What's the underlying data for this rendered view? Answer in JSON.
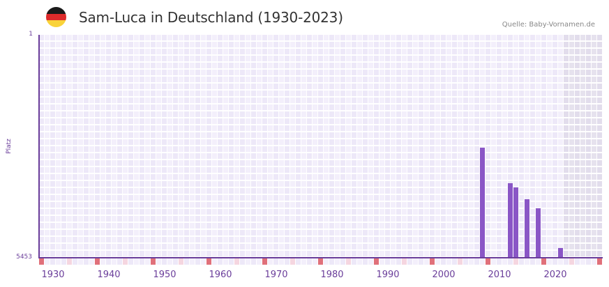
{
  "header": {
    "title": "Sam-Luca in Deutschland (1930-2023)",
    "source": "Quelle: Baby-Vornamen.de",
    "flag_icon": "germany-flag-icon",
    "flag_colors": [
      "#1a1a1a",
      "#dd2b2b",
      "#f9d33a"
    ]
  },
  "colors": {
    "bar": "#8a56c6",
    "axis": "#6a3d9a",
    "decade_marker": "#e0707a",
    "half_decade_marker": "#f5d6e0",
    "grid_even": "#ede8f8",
    "grid_odd": "#f3effb",
    "future_shade": "#e2ddec"
  },
  "chart_data": {
    "type": "bar",
    "title": "Sam-Luca in Deutschland (1930-2023)",
    "xlabel": "",
    "ylabel": "Platz",
    "y_inverted": true,
    "ylim": [
      1,
      5453
    ],
    "y_ticks": [
      "1",
      "5453"
    ],
    "x_range": [
      1928,
      2028
    ],
    "x_ticks": [
      "1930",
      "1940",
      "1950",
      "1960",
      "1970",
      "1980",
      "1990",
      "2000",
      "2010",
      "2020"
    ],
    "shaded_from_year": 2022,
    "categories": [
      "2007",
      "2012",
      "2013",
      "2015",
      "2017",
      "2021"
    ],
    "values": [
      2761,
      3630,
      3732,
      4022,
      4243,
      5215
    ],
    "grid": true,
    "legend": null
  },
  "axis": {
    "y_top_label": "1",
    "y_bottom_label": "5453",
    "y_title": "Platz"
  }
}
